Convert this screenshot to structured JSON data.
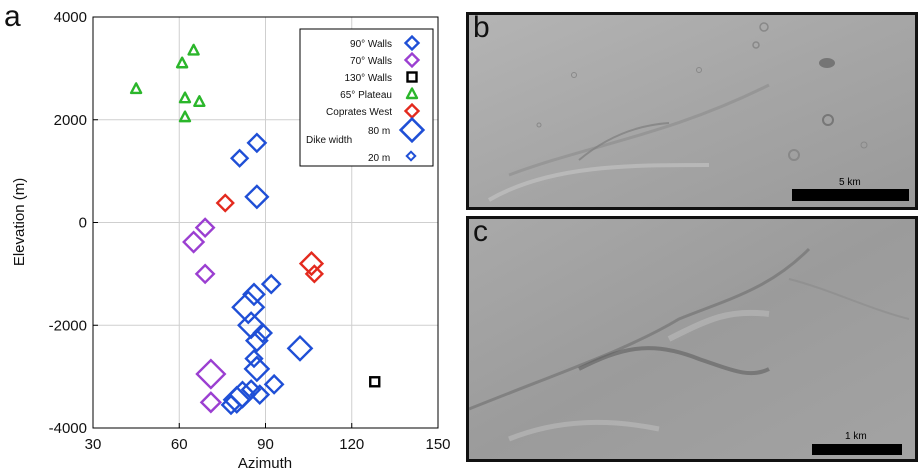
{
  "panel_labels": {
    "a": "a",
    "b": "b",
    "c": "c"
  },
  "chart_data": {
    "type": "scatter",
    "xlabel": "Azimuth",
    "ylabel": "Elevation (m)",
    "xlim": [
      30,
      150
    ],
    "ylim": [
      -4000,
      4000
    ],
    "xticks": [
      30,
      60,
      90,
      120,
      150
    ],
    "yticks": [
      -4000,
      -2000,
      0,
      2000,
      4000
    ],
    "grid": true,
    "legend_position": "top-right",
    "series": [
      {
        "name": "90° Walls",
        "marker": "diamond",
        "color": "#1f4fd6",
        "points": [
          {
            "x": 87,
            "y": 1550,
            "w": 30
          },
          {
            "x": 81,
            "y": 1250,
            "w": 25
          },
          {
            "x": 87,
            "y": 500,
            "w": 45
          },
          {
            "x": 92,
            "y": -1200,
            "w": 30
          },
          {
            "x": 86,
            "y": -1400,
            "w": 40
          },
          {
            "x": 84,
            "y": -1650,
            "w": 75
          },
          {
            "x": 85,
            "y": -2000,
            "w": 55
          },
          {
            "x": 89,
            "y": -2150,
            "w": 30
          },
          {
            "x": 87,
            "y": -2300,
            "w": 40
          },
          {
            "x": 102,
            "y": -2450,
            "w": 50
          },
          {
            "x": 86,
            "y": -2650,
            "w": 25
          },
          {
            "x": 87,
            "y": -2850,
            "w": 50
          },
          {
            "x": 93,
            "y": -3150,
            "w": 30
          },
          {
            "x": 85,
            "y": -3250,
            "w": 30
          },
          {
            "x": 82,
            "y": -3350,
            "w": 55
          },
          {
            "x": 88,
            "y": -3350,
            "w": 30
          },
          {
            "x": 80,
            "y": -3450,
            "w": 55
          },
          {
            "x": 78,
            "y": -3550,
            "w": 30
          }
        ]
      },
      {
        "name": "70° Walls",
        "marker": "diamond",
        "color": "#9b3fd1",
        "points": [
          {
            "x": 69,
            "y": -100,
            "w": 30
          },
          {
            "x": 65,
            "y": -380,
            "w": 38
          },
          {
            "x": 69,
            "y": -1000,
            "w": 30
          },
          {
            "x": 71,
            "y": -2950,
            "w": 65
          },
          {
            "x": 71,
            "y": -3500,
            "w": 35
          }
        ]
      },
      {
        "name": "130° Walls",
        "marker": "square",
        "color": "#000000",
        "points": [
          {
            "x": 128,
            "y": -3100,
            "w": 30
          }
        ]
      },
      {
        "name": "65° Plateau",
        "marker": "triangle",
        "color": "#2bb62b",
        "points": [
          {
            "x": 65,
            "y": 3350
          },
          {
            "x": 61,
            "y": 3100
          },
          {
            "x": 45,
            "y": 2600
          },
          {
            "x": 62,
            "y": 2420
          },
          {
            "x": 67,
            "y": 2350
          },
          {
            "x": 62,
            "y": 2050
          }
        ]
      },
      {
        "name": "Coprates West",
        "marker": "diamond",
        "color": "#e32a1e",
        "points": [
          {
            "x": 76,
            "y": 380,
            "w": 25
          },
          {
            "x": 106,
            "y": -800,
            "w": 45
          },
          {
            "x": 107,
            "y": -1000,
            "w": 25
          }
        ]
      }
    ],
    "legend": {
      "entries": [
        "90° Walls",
        "70° Walls",
        "130° Walls",
        "65° Plateau",
        "Coprates West"
      ],
      "size_title": "Dike width",
      "size_entries": [
        {
          "label": "80 m",
          "w": 80
        },
        {
          "label": "20 m",
          "w": 20
        }
      ]
    }
  },
  "panel_b": {
    "scale_label": "5 km"
  },
  "panel_c": {
    "scale_label": "1 km"
  }
}
